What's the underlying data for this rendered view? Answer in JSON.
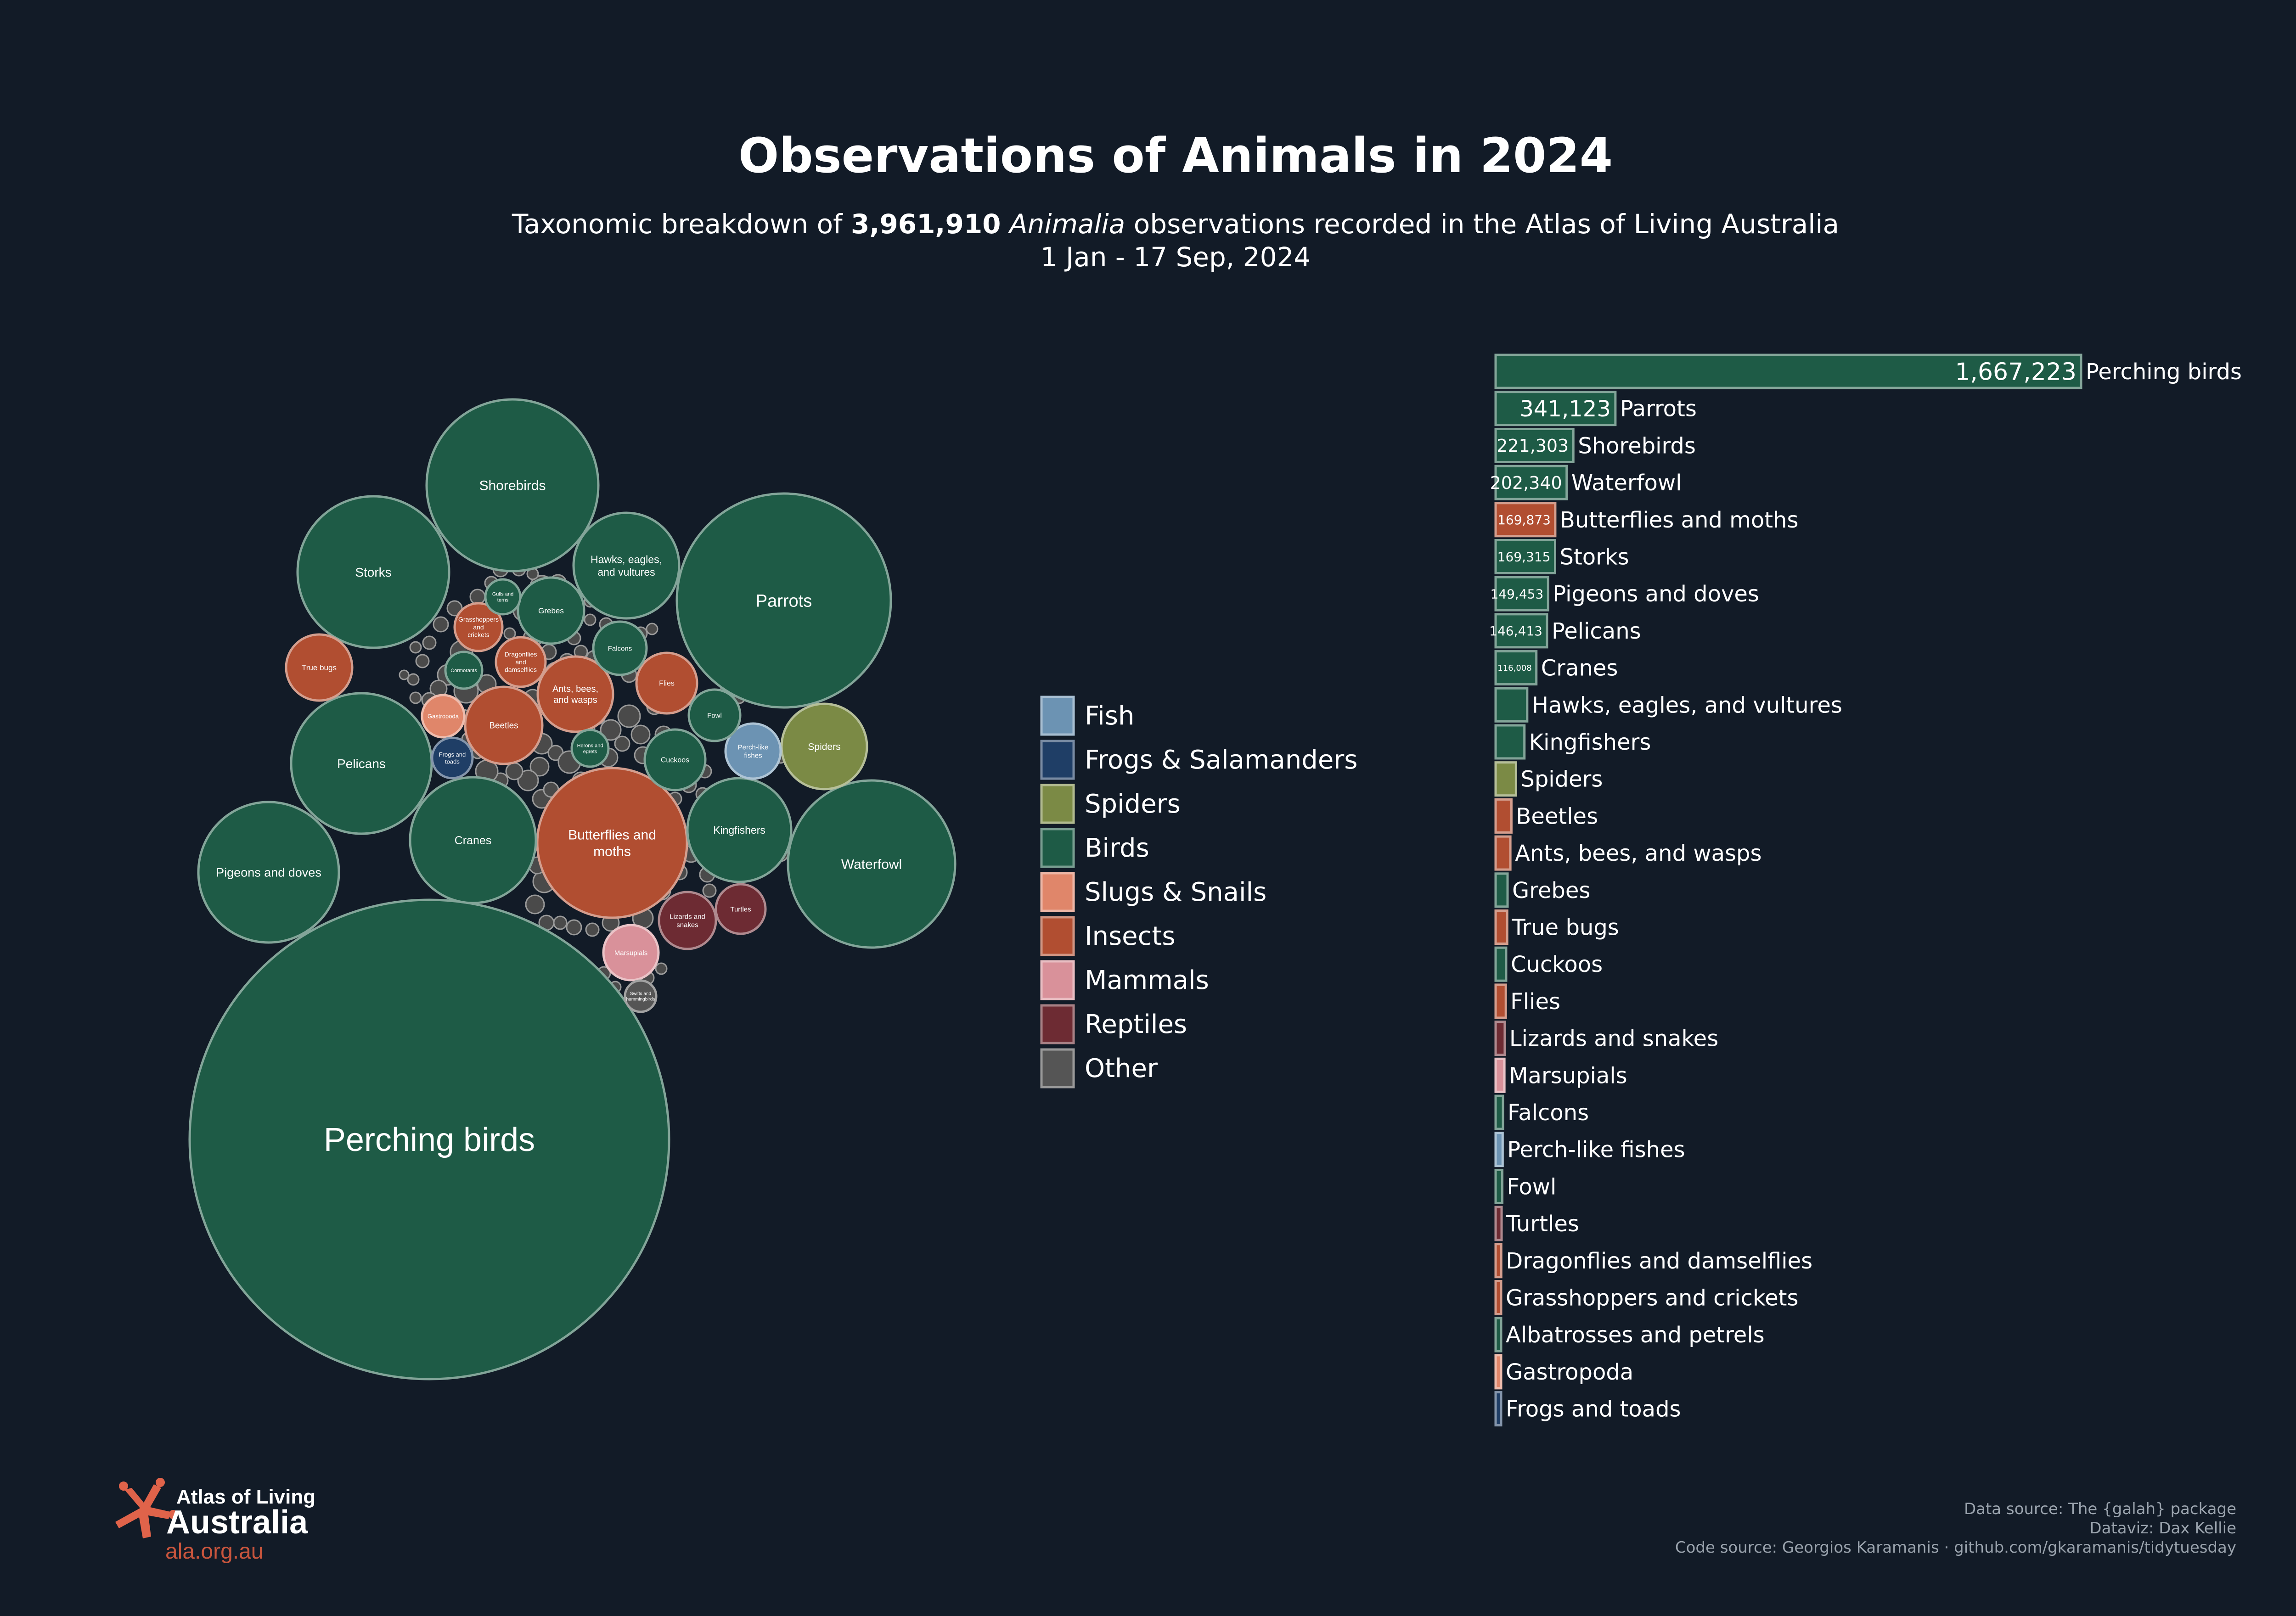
{
  "header": {
    "title": "Observations of Animals in 2024",
    "subtitle_pre": "Taxonomic breakdown of ",
    "subtitle_total": "3,961,910",
    "subtitle_taxon": "Animalia",
    "subtitle_post": " observations recorded in the Atlas of Living Australia",
    "date_range": "1 Jan - 17 Sep, 2024"
  },
  "colors": {
    "background": "#121b27",
    "Fish": "#6c93b3",
    "Frogs & Salamanders": "#1f3e66",
    "Spiders": "#7b8a45",
    "Birds": "#1e5b46",
    "Slugs & Snails": "#e0866a",
    "Insects": "#b14e31",
    "Mammals": "#d9919a",
    "Reptiles": "#6d2b33",
    "Other": "#555555",
    "bird_stroke": "#7fb6a0",
    "other_stroke": "#a0a0a0"
  },
  "legend": {
    "items": [
      "Fish",
      "Frogs & Salamanders",
      "Spiders",
      "Birds",
      "Slugs & Snails",
      "Insects",
      "Mammals",
      "Reptiles",
      "Other"
    ]
  },
  "bubbles": {
    "labeled": [
      {
        "label": "Perching birds",
        "group": "Birds"
      },
      {
        "label": "Parrots",
        "group": "Birds"
      },
      {
        "label": "Shorebirds",
        "group": "Birds"
      },
      {
        "label": "Waterfowl",
        "group": "Birds"
      },
      {
        "label": "Butterflies and moths",
        "group": "Insects"
      },
      {
        "label": "Storks",
        "group": "Birds"
      },
      {
        "label": "Pigeons and doves",
        "group": "Birds"
      },
      {
        "label": "Pelicans",
        "group": "Birds"
      },
      {
        "label": "Cranes",
        "group": "Birds"
      },
      {
        "label": "Hawks, eagles, and vultures",
        "group": "Birds"
      },
      {
        "label": "Kingfishers",
        "group": "Birds"
      },
      {
        "label": "Spiders",
        "group": "Spiders"
      },
      {
        "label": "Beetles",
        "group": "Insects"
      },
      {
        "label": "Ants, bees, and wasps",
        "group": "Insects"
      },
      {
        "label": "Grebes",
        "group": "Birds"
      },
      {
        "label": "True bugs",
        "group": "Insects"
      },
      {
        "label": "Cuckoos",
        "group": "Birds"
      },
      {
        "label": "Flies",
        "group": "Insects"
      },
      {
        "label": "Lizards and snakes",
        "group": "Reptiles"
      },
      {
        "label": "Marsupials",
        "group": "Mammals"
      },
      {
        "label": "Falcons",
        "group": "Birds"
      },
      {
        "label": "Perch-like fishes",
        "group": "Fish"
      },
      {
        "label": "Fowl",
        "group": "Birds"
      },
      {
        "label": "Turtles",
        "group": "Reptiles"
      },
      {
        "label": "Dragonflies and damselflies",
        "group": "Insects"
      },
      {
        "label": "Grasshoppers and crickets",
        "group": "Insects"
      },
      {
        "label": "Gastropoda",
        "group": "Slugs & Snails"
      },
      {
        "label": "Frogs and toads",
        "group": "Frogs & Salamanders"
      },
      {
        "label": "Herons and egrets",
        "group": "Birds"
      },
      {
        "label": "Cormorants",
        "group": "Birds"
      },
      {
        "label": "Gulls and terns",
        "group": "Birds"
      },
      {
        "label": "Swifts and hummingbirds",
        "group": "Other"
      }
    ]
  },
  "chart_data": {
    "type": "bar",
    "orientation": "horizontal",
    "categories": [
      "Perching birds",
      "Parrots",
      "Shorebirds",
      "Waterfowl",
      "Butterflies and moths",
      "Storks",
      "Pigeons and doves",
      "Pelicans",
      "Cranes",
      "Hawks, eagles, and vultures",
      "Kingfishers",
      "Spiders",
      "Beetles",
      "Ants, bees, and wasps",
      "Grebes",
      "True bugs",
      "Cuckoos",
      "Flies",
      "Lizards and snakes",
      "Marsupials",
      "Falcons",
      "Perch-like fishes",
      "Fowl",
      "Turtles",
      "Dragonflies and damselflies",
      "Grasshoppers and crickets",
      "Albatrosses and petrels",
      "Gastropoda",
      "Frogs and toads"
    ],
    "values": [
      1667223,
      341123,
      221303,
      202340,
      169873,
      169315,
      149453,
      146413,
      116008,
      90000,
      82000,
      58000,
      45000,
      42000,
      34000,
      33000,
      30000,
      29000,
      26000,
      25000,
      21000,
      20000,
      19000,
      17000,
      16000,
      15500,
      15000,
      14000,
      13000
    ],
    "value_labels": [
      "1,667,223",
      "341,123",
      "221,303",
      "202,340",
      "169,873",
      "169,315",
      "149,453",
      "146,413",
      "116,008",
      "",
      "",
      "",
      "",
      "",
      "",
      "",
      "",
      "",
      "",
      "",
      "",
      "",
      "",
      "",
      "",
      "",
      "",
      "",
      ""
    ],
    "groups": [
      "Birds",
      "Birds",
      "Birds",
      "Birds",
      "Insects",
      "Birds",
      "Birds",
      "Birds",
      "Birds",
      "Birds",
      "Birds",
      "Spiders",
      "Insects",
      "Insects",
      "Birds",
      "Insects",
      "Birds",
      "Insects",
      "Reptiles",
      "Mammals",
      "Birds",
      "Fish",
      "Birds",
      "Reptiles",
      "Insects",
      "Insects",
      "Birds",
      "Slugs & Snails",
      "Frogs & Salamanders"
    ],
    "xlabel": "",
    "ylabel": ""
  },
  "footer": {
    "logo_line1": "Atlas of Living",
    "logo_line2": "Australia",
    "logo_url": "ala.org.au",
    "credit_1": "Data source: The {galah} package",
    "credit_2": "Dataviz: Dax Kellie",
    "credit_3": "Code source: Georgios Karamanis · github.com/gkaramanis/tidytuesday"
  }
}
